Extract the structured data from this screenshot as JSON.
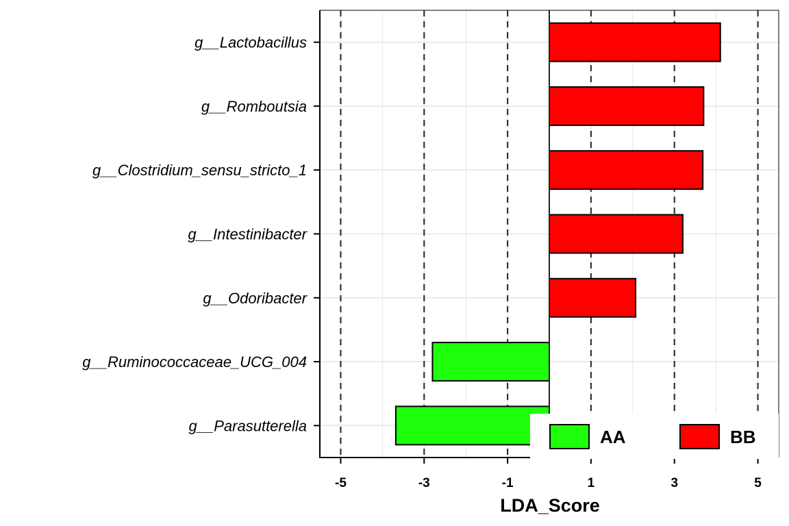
{
  "chart_data": {
    "type": "bar",
    "orientation": "horizontal",
    "title": "",
    "xlabel": "LDA_Score",
    "ylabel": "",
    "xlim": [
      -5.5,
      5.5
    ],
    "xticks": [
      -5,
      -3,
      -1,
      1,
      3,
      5
    ],
    "xtick_labels": [
      "-5",
      "-3",
      "-1",
      "1",
      "3",
      "5"
    ],
    "grid": true,
    "dashed_reference_lines": [
      -5,
      -3,
      -1,
      1,
      3,
      5
    ],
    "legend_position": "bottom-right",
    "categories": [
      "g__Lactobacillus",
      "g__Romboutsia",
      "g__Clostridium_sensu_stricto_1",
      "g__Intestinibacter",
      "g__Odoribacter",
      "g__Ruminococcaceae_UCG_004",
      "g__Parasutterella"
    ],
    "values": [
      4.1,
      3.7,
      3.68,
      3.2,
      2.07,
      -2.8,
      -3.68
    ],
    "groups": [
      "BB",
      "BB",
      "BB",
      "BB",
      "BB",
      "AA",
      "AA"
    ],
    "legend": [
      {
        "name": "AA",
        "color": "#1eff0c"
      },
      {
        "name": "BB",
        "color": "#ff0000"
      }
    ]
  }
}
